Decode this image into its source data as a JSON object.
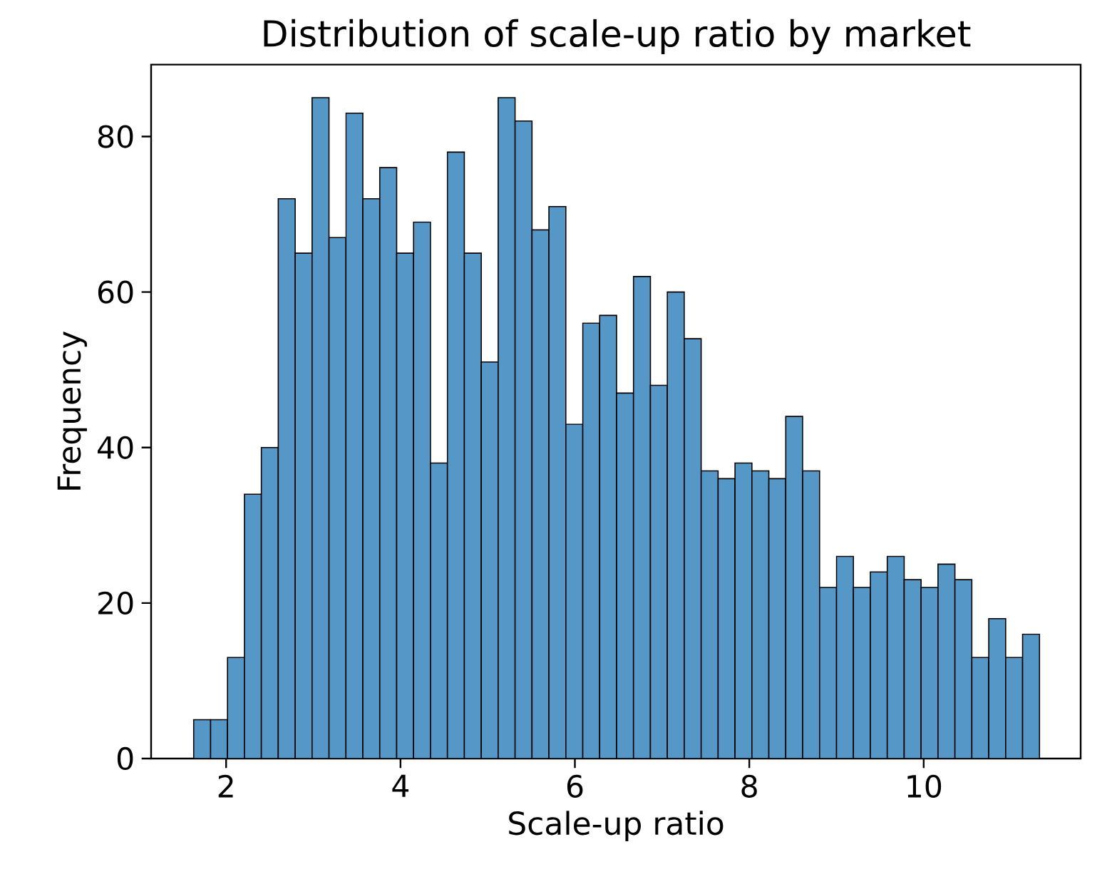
{
  "chart_data": {
    "type": "histogram",
    "title": "Distribution of scale-up ratio by market",
    "xlabel": "Scale-up ratio",
    "ylabel": "Frequency",
    "bins": [
      1.628,
      1.822,
      2.016,
      2.21,
      2.404,
      2.598,
      2.792,
      2.986,
      3.18,
      3.374,
      3.568,
      3.762,
      3.956,
      4.15,
      4.344,
      4.538,
      4.732,
      4.926,
      5.12,
      5.314,
      5.508,
      5.702,
      5.896,
      6.09,
      6.284,
      6.478,
      6.672,
      6.866,
      7.06,
      7.254,
      7.448,
      7.642,
      7.836,
      8.03,
      8.224,
      8.418,
      8.612,
      8.806,
      9.0,
      9.194,
      9.388,
      9.582,
      9.776,
      9.97,
      10.164,
      10.358,
      10.552,
      10.746,
      10.94,
      11.134,
      11.328
    ],
    "values": [
      5,
      5,
      13,
      34,
      40,
      72,
      65,
      85,
      67,
      83,
      72,
      76,
      65,
      69,
      38,
      78,
      65,
      51,
      85,
      82,
      68,
      71,
      43,
      56,
      57,
      47,
      62,
      48,
      60,
      54,
      37,
      36,
      38,
      37,
      36,
      44,
      37,
      22,
      26,
      22,
      24,
      26,
      23,
      22,
      25,
      23,
      13,
      18,
      13,
      16
    ],
    "color": "#5597c6",
    "xlim": [
      1.14,
      11.8
    ],
    "ylim": [
      0,
      89.25
    ],
    "xticks": [
      2,
      4,
      6,
      8,
      10
    ],
    "yticks": [
      0,
      20,
      40,
      60,
      80
    ],
    "grid": false
  }
}
